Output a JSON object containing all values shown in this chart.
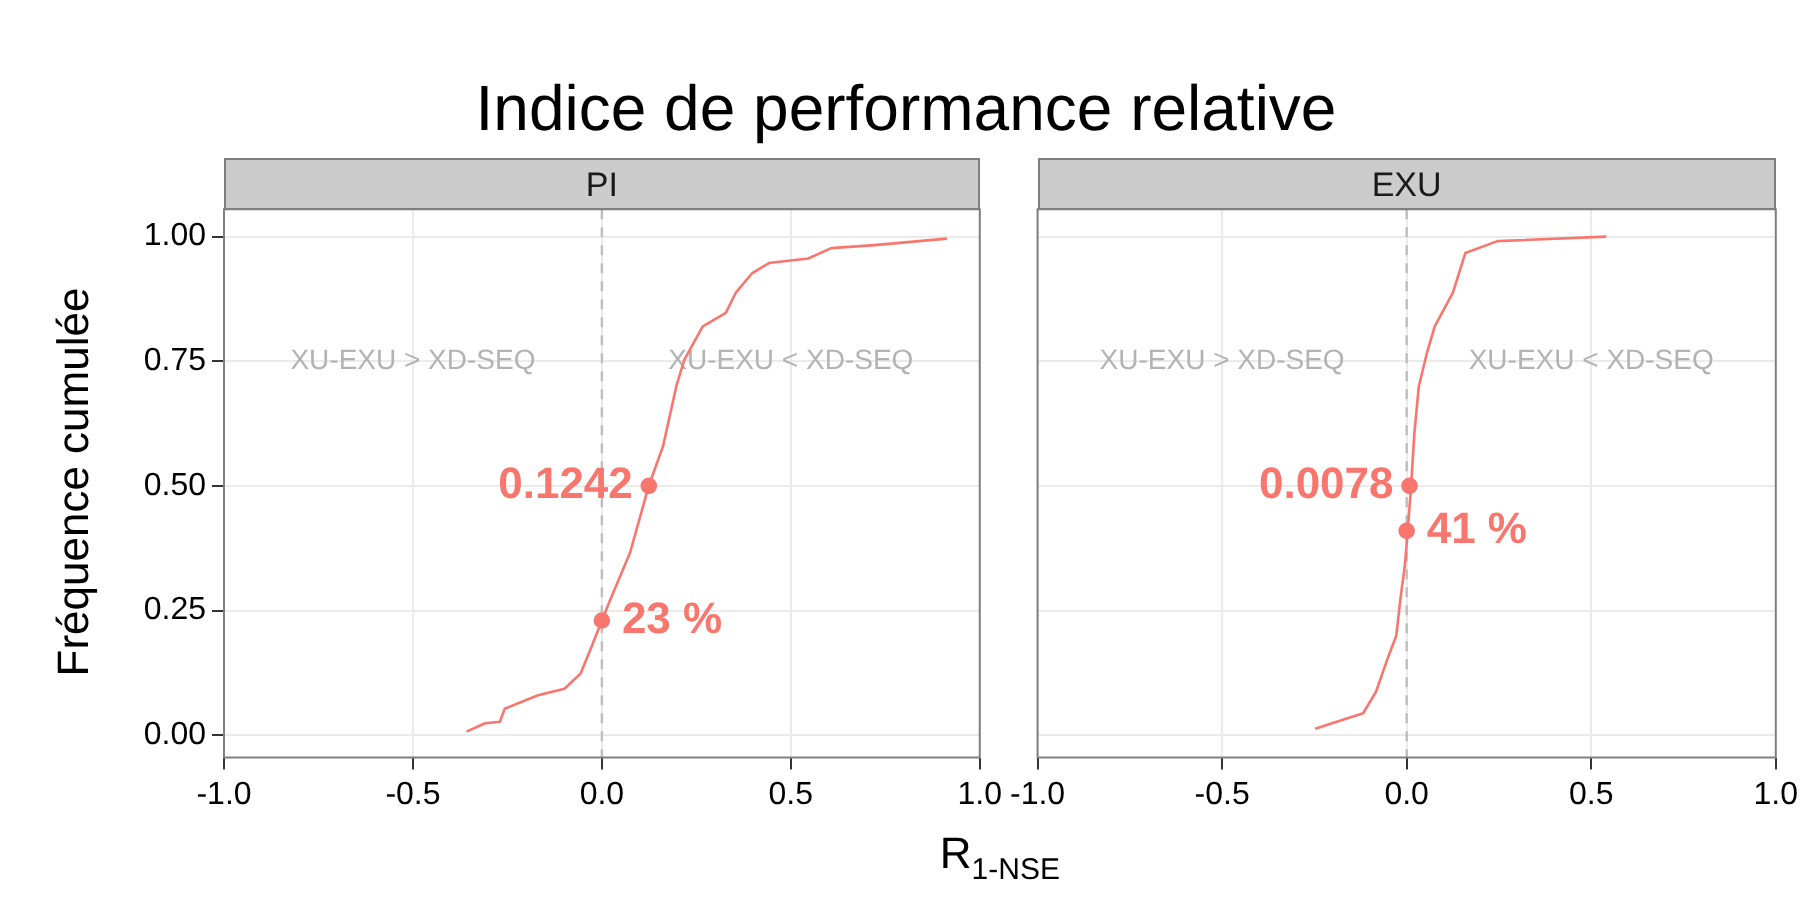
{
  "chart_data": [
    {
      "type": "line",
      "title": "Indice de performance relative",
      "subtitle": "PI",
      "xlabel": "R$_{1-NSE}$",
      "ylabel": "Fréquence cumulée",
      "series": [
        {
          "type": "line",
          "color": "#f8766d",
          "marker": "none",
          "x": [
            -0.358,
            -0.309,
            -0.27,
            -0.257,
            -0.169,
            -0.099,
            -0.056,
            -0.026,
            0,
            0.023,
            0.075,
            0.124,
            0.162,
            0.197,
            0.218,
            0.267,
            0.328,
            0.354,
            0.398,
            0.442,
            0.546,
            0.607,
            0.721,
            0.913
          ],
          "values": [
            0.007,
            0.024,
            0.027,
            0.053,
            0.08,
            0.093,
            0.124,
            0.18,
            0.23,
            0.273,
            0.367,
            0.5,
            0.58,
            0.7,
            0.753,
            0.82,
            0.847,
            0.887,
            0.927,
            0.947,
            0.956,
            0.977,
            0.983,
            0.996
          ]
        },
        {
          "type": "scatter",
          "color": "#f8766d",
          "marker": "circle",
          "x": [
            0,
            0.1242
          ],
          "values": [
            0.23,
            0.5
          ]
        }
      ],
      "annotations": [
        "XU-EXU > XD-SEQ",
        "XU-EXU < XD-SEQ",
        {
          "text": "0.1242",
          "x": 0.1242,
          "y": 0.5
        },
        {
          "text": "23 %",
          "x": 0,
          "y": 0.23
        }
      ],
      "ref_lines": [
        {
          "axis": "x",
          "value": 0,
          "color": "#bebebe",
          "line_style": "dashed"
        }
      ],
      "xlim": [
        -1,
        1
      ],
      "xticks": [
        {
          "value": -1,
          "label": "-1.0"
        },
        {
          "value": -0.5,
          "label": "-0.5"
        },
        {
          "value": 0,
          "label": "0.0"
        },
        {
          "value": 0.5,
          "label": "0.5"
        },
        {
          "value": 1,
          "label": "1.0"
        }
      ],
      "ylim": [
        -0.045,
        1.055
      ],
      "yticks": [
        {
          "value": 0,
          "label": "0.00"
        },
        {
          "value": 0.25,
          "label": "0.25"
        },
        {
          "value": 0.5,
          "label": "0.50"
        },
        {
          "value": 0.75,
          "label": "0.75"
        },
        {
          "value": 1,
          "label": "1.00"
        }
      ],
      "grid": true,
      "legend": false
    },
    {
      "type": "line",
      "subtitle": "EXU",
      "series": [
        {
          "type": "line",
          "color": "#f8766d",
          "marker": "none",
          "x": [
            -0.248,
            -0.118,
            -0.083,
            -0.052,
            -0.028,
            -0.017,
            -0.005,
            0.003,
            0.012,
            0.021,
            0.033,
            0.055,
            0.076,
            0.125,
            0.159,
            0.246,
            0.541
          ],
          "values": [
            0.013,
            0.044,
            0.087,
            0.153,
            0.2,
            0.273,
            0.34,
            0.41,
            0.5,
            0.607,
            0.7,
            0.767,
            0.82,
            0.887,
            0.967,
            0.991,
            1.0
          ]
        },
        {
          "type": "scatter",
          "color": "#f8766d",
          "marker": "circle",
          "x": [
            0,
            0.0078
          ],
          "values": [
            0.41,
            0.5
          ]
        }
      ],
      "annotations": [
        "XU-EXU > XD-SEQ",
        "XU-EXU < XD-SEQ",
        {
          "text": "0.0078",
          "x": 0.0078,
          "y": 0.5
        },
        {
          "text": "41 %",
          "x": 0,
          "y": 0.41
        }
      ],
      "ref_lines": [
        {
          "axis": "x",
          "value": 0,
          "color": "#bebebe",
          "line_style": "dashed"
        }
      ],
      "xlim": [
        -1,
        1
      ],
      "xticks": [
        {
          "value": -1,
          "label": "-1.0"
        },
        {
          "value": -0.5,
          "label": "-0.5"
        },
        {
          "value": 0,
          "label": "0.0"
        },
        {
          "value": 0.5,
          "label": "0.5"
        },
        {
          "value": 1,
          "label": "1.0"
        }
      ],
      "ylim": [
        -0.045,
        1.055
      ],
      "yticks": [
        {
          "value": 0,
          "label": null
        },
        {
          "value": 0.25,
          "label": null
        },
        {
          "value": 0.5,
          "label": null
        },
        {
          "value": 0.75,
          "label": null
        },
        {
          "value": 1,
          "label": null
        }
      ],
      "tick_labels": "x",
      "grid": true,
      "legend": false
    }
  ]
}
